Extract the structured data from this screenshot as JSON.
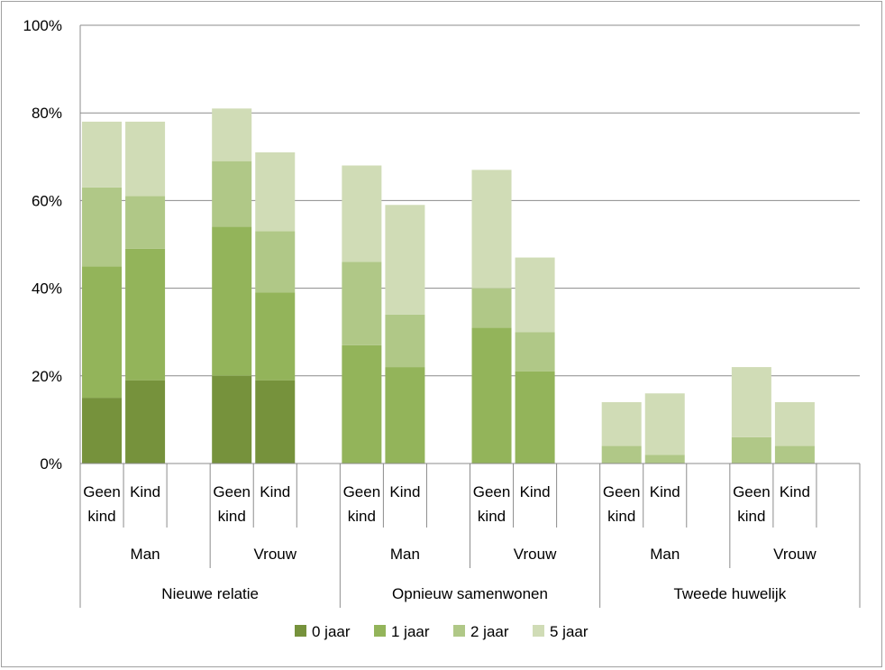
{
  "chart_data": {
    "type": "bar",
    "stacked": true,
    "ylim": [
      0,
      100
    ],
    "y_ticks": [
      "0%",
      "20%",
      "40%",
      "60%",
      "80%",
      "100%"
    ],
    "grid": true,
    "legend_position": "bottom",
    "series": [
      {
        "name": "0 jaar",
        "color": "#76923c",
        "values": [
          15,
          19,
          20,
          19,
          0,
          0,
          0,
          0,
          0,
          0,
          0,
          0
        ]
      },
      {
        "name": "1 jaar",
        "color": "#93b45a",
        "values": [
          30,
          30,
          34,
          20,
          27,
          22,
          31,
          21,
          0,
          0,
          0,
          0
        ]
      },
      {
        "name": "2 jaar",
        "color": "#b0c887",
        "values": [
          18,
          12,
          15,
          14,
          19,
          12,
          9,
          9,
          4,
          2,
          6,
          4
        ]
      },
      {
        "name": "5 jaar",
        "color": "#d0dcb6",
        "values": [
          15,
          17,
          12,
          18,
          22,
          25,
          27,
          17,
          10,
          14,
          16,
          10
        ]
      }
    ],
    "groups": [
      {
        "label": "Nieuwe relatie",
        "sexes": [
          {
            "label": "Man",
            "bars": [
              {
                "line1": "Geen",
                "line2": "kind"
              },
              {
                "line1": "Kind",
                "line2": ""
              }
            ]
          },
          {
            "label": "Vrouw",
            "bars": [
              {
                "line1": "Geen",
                "line2": "kind"
              },
              {
                "line1": "Kind",
                "line2": ""
              }
            ]
          }
        ]
      },
      {
        "label": "Opnieuw samenwonen",
        "sexes": [
          {
            "label": "Man",
            "bars": [
              {
                "line1": "Geen",
                "line2": "kind"
              },
              {
                "line1": "Kind",
                "line2": ""
              }
            ]
          },
          {
            "label": "Vrouw",
            "bars": [
              {
                "line1": "Geen",
                "line2": "kind"
              },
              {
                "line1": "Kind",
                "line2": ""
              }
            ]
          }
        ]
      },
      {
        "label": "Tweede huwelijk",
        "sexes": [
          {
            "label": "Man",
            "bars": [
              {
                "line1": "Geen",
                "line2": "kind"
              },
              {
                "line1": "Kind",
                "line2": ""
              }
            ]
          },
          {
            "label": "Vrouw",
            "bars": [
              {
                "line1": "Geen",
                "line2": "kind"
              },
              {
                "line1": "Kind",
                "line2": ""
              }
            ]
          }
        ]
      }
    ]
  }
}
